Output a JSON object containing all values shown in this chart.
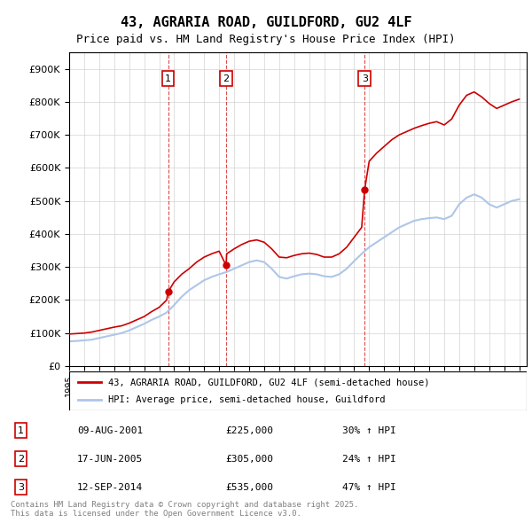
{
  "title": "43, AGRARIA ROAD, GUILDFORD, GU2 4LF",
  "subtitle": "Price paid vs. HM Land Registry's House Price Index (HPI)",
  "ylabel_ticks": [
    "£0",
    "£100K",
    "£200K",
    "£300K",
    "£400K",
    "£500K",
    "£600K",
    "£700K",
    "£800K",
    "£900K"
  ],
  "ytick_values": [
    0,
    100000,
    200000,
    300000,
    400000,
    500000,
    600000,
    700000,
    800000,
    900000
  ],
  "ylim": [
    0,
    950000
  ],
  "xlim_start": 1995.0,
  "xlim_end": 2025.5,
  "hpi_color": "#aec6e8",
  "price_color": "#cc0000",
  "sale_marker_color": "#cc0000",
  "vline_color": "#cc0000",
  "box_edgecolor": "#cc0000",
  "legend_label_price": "43, AGRARIA ROAD, GUILDFORD, GU2 4LF (semi-detached house)",
  "legend_label_hpi": "HPI: Average price, semi-detached house, Guildford",
  "sales": [
    {
      "num": 1,
      "date": "09-AUG-2001",
      "price": 225000,
      "hpi_pct": "30%",
      "x_year": 2001.6
    },
    {
      "num": 2,
      "date": "17-JUN-2005",
      "price": 305000,
      "hpi_pct": "24%",
      "x_year": 2005.46
    },
    {
      "num": 3,
      "date": "12-SEP-2014",
      "price": 535000,
      "hpi_pct": "47%",
      "x_year": 2014.7
    }
  ],
  "footnote": "Contains HM Land Registry data © Crown copyright and database right 2025.\nThis data is licensed under the Open Government Licence v3.0.",
  "hpi_x": [
    1995.0,
    1995.5,
    1996.0,
    1996.5,
    1997.0,
    1997.5,
    1998.0,
    1998.5,
    1999.0,
    1999.5,
    2000.0,
    2000.5,
    2001.0,
    2001.5,
    2002.0,
    2002.5,
    2003.0,
    2003.5,
    2004.0,
    2004.5,
    2005.0,
    2005.5,
    2006.0,
    2006.5,
    2007.0,
    2007.5,
    2008.0,
    2008.5,
    2009.0,
    2009.5,
    2010.0,
    2010.5,
    2011.0,
    2011.5,
    2012.0,
    2012.5,
    2013.0,
    2013.5,
    2014.0,
    2014.5,
    2015.0,
    2015.5,
    2016.0,
    2016.5,
    2017.0,
    2017.5,
    2018.0,
    2018.5,
    2019.0,
    2019.5,
    2020.0,
    2020.5,
    2021.0,
    2021.5,
    2022.0,
    2022.5,
    2023.0,
    2023.5,
    2024.0,
    2024.5,
    2025.0
  ],
  "hpi_y": [
    75000,
    76000,
    78000,
    80000,
    85000,
    90000,
    95000,
    100000,
    108000,
    118000,
    128000,
    140000,
    150000,
    162000,
    185000,
    210000,
    230000,
    245000,
    260000,
    270000,
    278000,
    285000,
    295000,
    305000,
    315000,
    320000,
    315000,
    295000,
    270000,
    265000,
    272000,
    278000,
    280000,
    278000,
    272000,
    270000,
    278000,
    295000,
    318000,
    340000,
    360000,
    375000,
    390000,
    405000,
    420000,
    430000,
    440000,
    445000,
    448000,
    450000,
    445000,
    455000,
    490000,
    510000,
    520000,
    510000,
    490000,
    480000,
    490000,
    500000,
    505000
  ],
  "price_x": [
    1995.0,
    1995.5,
    1996.0,
    1996.5,
    1997.0,
    1997.5,
    1998.0,
    1998.5,
    1999.0,
    1999.5,
    2000.0,
    2000.5,
    2001.0,
    2001.5,
    2001.6,
    2002.0,
    2002.5,
    2003.0,
    2003.5,
    2004.0,
    2004.5,
    2005.0,
    2005.46,
    2005.5,
    2006.0,
    2006.5,
    2007.0,
    2007.5,
    2008.0,
    2008.5,
    2009.0,
    2009.5,
    2010.0,
    2010.5,
    2011.0,
    2011.5,
    2012.0,
    2012.5,
    2013.0,
    2013.5,
    2014.0,
    2014.5,
    2014.7,
    2015.0,
    2015.5,
    2016.0,
    2016.5,
    2017.0,
    2017.5,
    2018.0,
    2018.5,
    2019.0,
    2019.5,
    2020.0,
    2020.5,
    2021.0,
    2021.5,
    2022.0,
    2022.5,
    2023.0,
    2023.5,
    2024.0,
    2024.5,
    2025.0
  ],
  "price_y": [
    97000,
    98500,
    100000,
    103000,
    108000,
    113000,
    118000,
    122000,
    130000,
    140000,
    150000,
    165000,
    178000,
    200000,
    225000,
    255000,
    278000,
    295000,
    315000,
    330000,
    340000,
    348000,
    305000,
    340000,
    355000,
    368000,
    378000,
    382000,
    375000,
    355000,
    330000,
    328000,
    335000,
    340000,
    342000,
    338000,
    330000,
    330000,
    340000,
    360000,
    390000,
    420000,
    535000,
    620000,
    645000,
    665000,
    685000,
    700000,
    710000,
    720000,
    728000,
    735000,
    740000,
    730000,
    748000,
    790000,
    820000,
    830000,
    815000,
    795000,
    780000,
    790000,
    800000,
    808000
  ]
}
